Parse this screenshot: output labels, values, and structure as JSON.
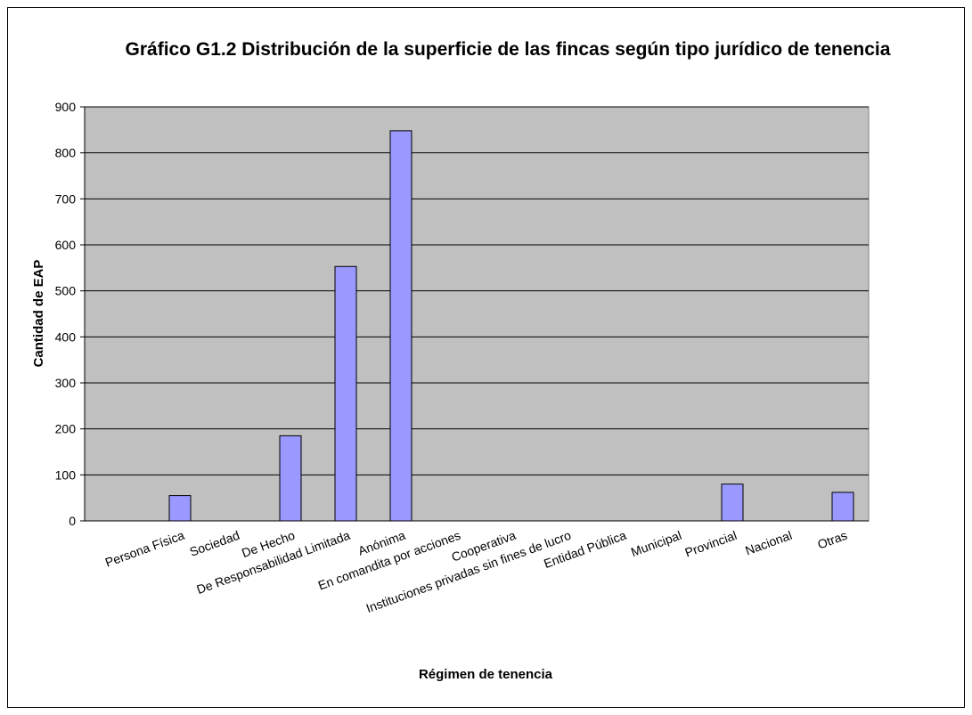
{
  "chart_data": {
    "type": "bar",
    "title": "Gráfico G1.2 Distribución de la superficie de las fincas según tipo jurídico de tenencia",
    "xlabel": "Régimen de tenencia",
    "ylabel": "Cantidad de EAP",
    "categories": [
      "Persona Física",
      "Sociedad",
      "De Hecho",
      "De Responsabilidad Limitada",
      "Anónima",
      "En comandita por acciones",
      "Cooperativa",
      "Instituciones privadas sin fines de lucro",
      "Entidad Pública",
      "Municipal",
      "Provincial",
      "Nacional",
      "Otras"
    ],
    "values": [
      55,
      0,
      185,
      553,
      848,
      0,
      0,
      0,
      0,
      0,
      80,
      0,
      62
    ],
    "color": "#9999ff",
    "ylim": [
      0,
      900
    ],
    "yticks": [
      0,
      100,
      200,
      300,
      400,
      500,
      600,
      700,
      800,
      900
    ],
    "grid": true
  }
}
